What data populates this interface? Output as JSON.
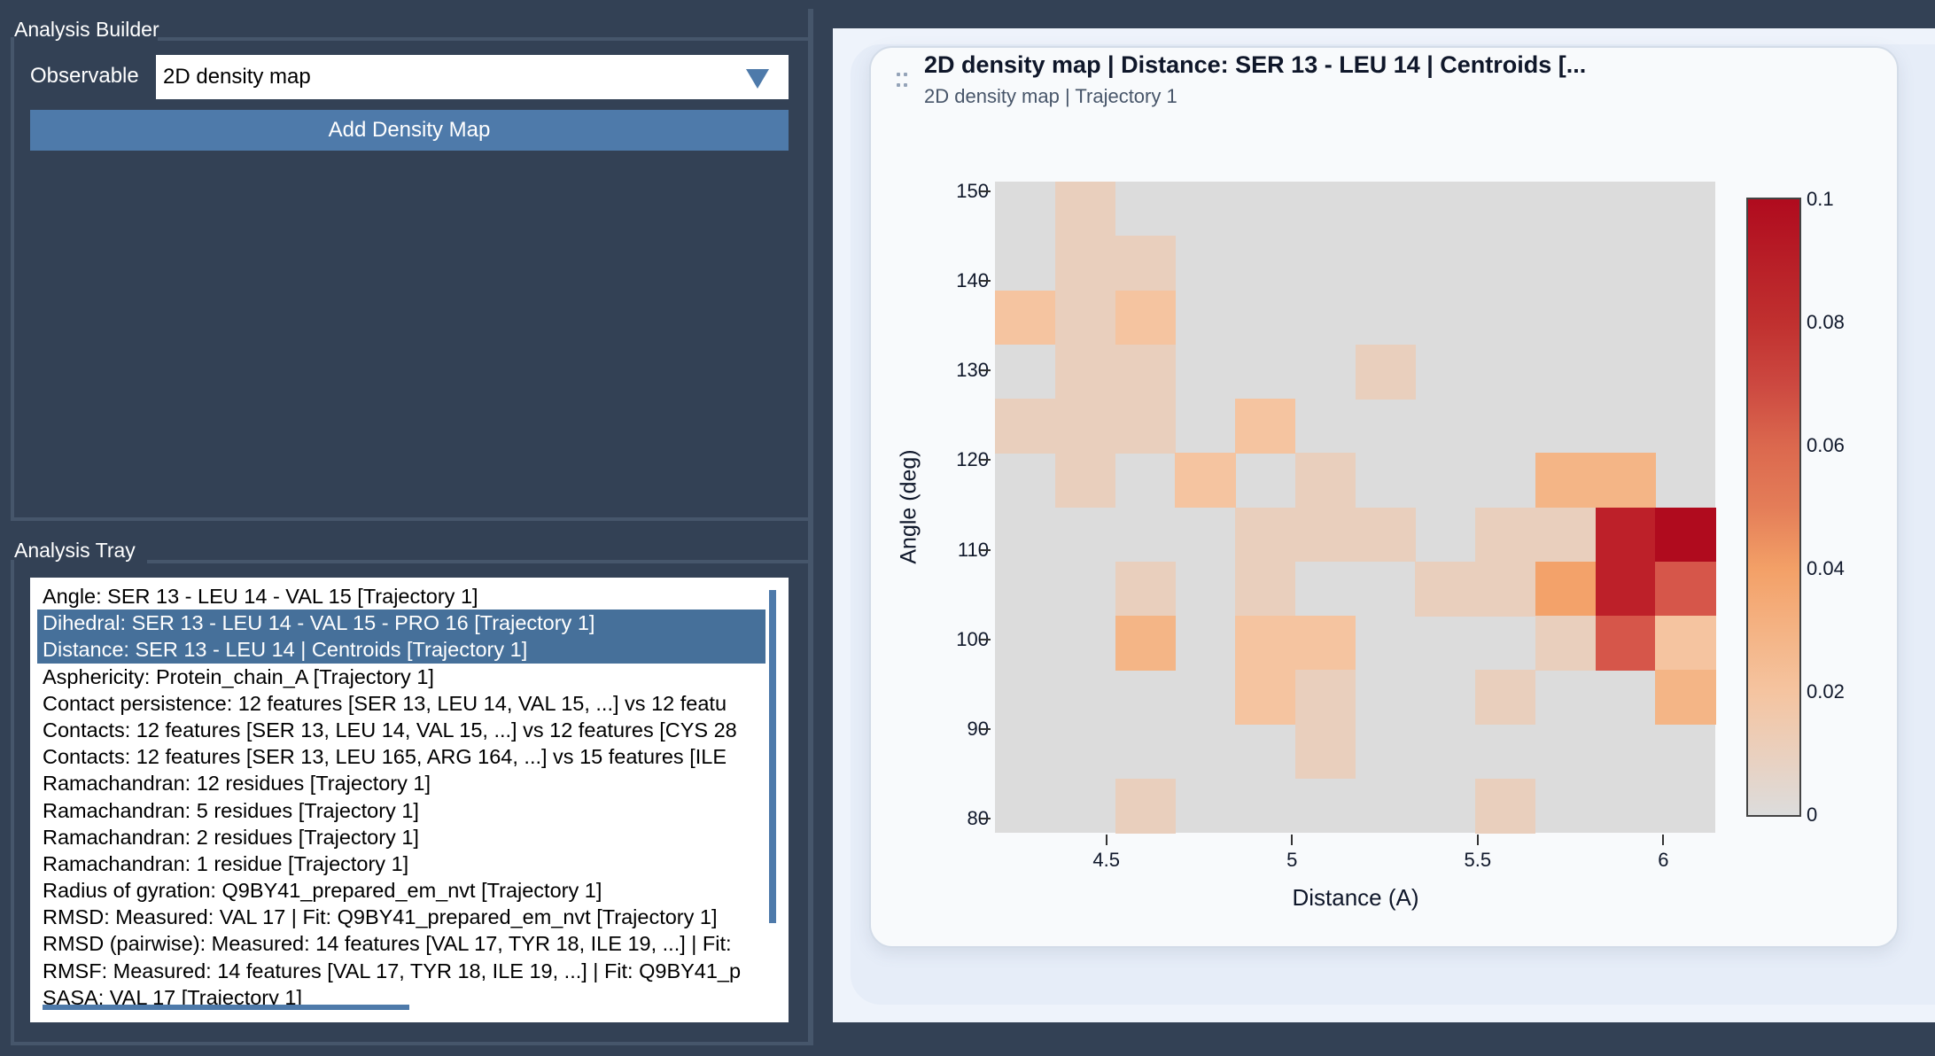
{
  "builder": {
    "title": "Analysis Builder",
    "observable_label": "Observable",
    "observable_value": "2D density map",
    "add_button": "Add Density Map"
  },
  "tray": {
    "title": "Analysis Tray",
    "items": [
      {
        "label": "Angle: SER 13 - LEU 14 - VAL 15 [Trajectory 1]",
        "selected": false
      },
      {
        "label": "Dihedral: SER 13 - LEU 14 - VAL 15 - PRO 16 [Trajectory 1]",
        "selected": true
      },
      {
        "label": "Distance: SER 13 - LEU 14 | Centroids [Trajectory 1]",
        "selected": true
      },
      {
        "label": "Asphericity: Protein_chain_A [Trajectory 1]",
        "selected": false
      },
      {
        "label": "Contact persistence: 12 features [SER 13, LEU 14, VAL 15, ...] vs 12 featu",
        "selected": false
      },
      {
        "label": "Contacts: 12 features [SER 13, LEU 14, VAL 15, ...] vs 12 features [CYS 28",
        "selected": false
      },
      {
        "label": "Contacts: 12 features [SER 13, LEU 165, ARG 164, ...] vs 15 features [ILE",
        "selected": false
      },
      {
        "label": "Ramachandran: 12 residues [Trajectory 1]",
        "selected": false
      },
      {
        "label": "Ramachandran: 5 residues [Trajectory 1]",
        "selected": false
      },
      {
        "label": "Ramachandran: 2 residues [Trajectory 1]",
        "selected": false
      },
      {
        "label": "Ramachandran: 1 residue [Trajectory 1]",
        "selected": false
      },
      {
        "label": "Radius of gyration: Q9BY41_prepared_em_nvt [Trajectory 1]",
        "selected": false
      },
      {
        "label": "RMSD: Measured: VAL 17 | Fit: Q9BY41_prepared_em_nvt [Trajectory 1]",
        "selected": false
      },
      {
        "label": "RMSD (pairwise): Measured: 14 features [VAL 17, TYR 18, ILE 19, ...] | Fit:",
        "selected": false
      },
      {
        "label": "RMSF: Measured: 14 features [VAL 17, TYR 18, ILE 19, ...] | Fit: Q9BY41_p",
        "selected": false
      },
      {
        "label": "SASA: VAL 17 [Trajectory 1]",
        "selected": false
      }
    ]
  },
  "card": {
    "title": "2D density map | Distance: SER 13 - LEU 14 | Centroids [...",
    "subtitle": "2D density map | Trajectory 1",
    "drag_icon": "drag-handle-icon"
  },
  "chart_data": {
    "type": "heatmap",
    "title": "2D density map | Distance: SER 13 - LEU 14 | Centroids [...",
    "subtitle": "2D density map | Trajectory 1",
    "xlabel": "Distance (A)",
    "ylabel": "Angle (deg)",
    "x_ticks": [
      "4.5",
      "5",
      "5.5",
      "6"
    ],
    "x_tick_values": [
      4.5,
      5,
      5.5,
      6
    ],
    "y_ticks": [
      "150",
      "140",
      "130",
      "120",
      "110",
      "100",
      "90",
      "80"
    ],
    "y_tick_values": [
      150,
      140,
      130,
      120,
      110,
      100,
      90,
      80
    ],
    "xlim": [
      4.2,
      6.14
    ],
    "ylim": [
      78.4,
      151.1
    ],
    "n_cols": 12,
    "n_rows": 12,
    "colorbar": {
      "ticks": [
        "0.1",
        "0.08",
        "0.06",
        "0.04",
        "0.02",
        "0"
      ],
      "range": [
        0,
        0.1
      ],
      "colors": [
        "#dcdcdc",
        "#f5c4a0",
        "#f3a067",
        "#d6564a",
        "#b00b1e"
      ]
    },
    "z_rows_top_to_bottom": [
      [
        0,
        0.01,
        0,
        0,
        0,
        0,
        0,
        0,
        0,
        0,
        0,
        0
      ],
      [
        0,
        0.01,
        0.01,
        0,
        0,
        0,
        0,
        0,
        0,
        0,
        0,
        0
      ],
      [
        0.02,
        0.01,
        0.02,
        0,
        0,
        0,
        0,
        0,
        0,
        0,
        0,
        0
      ],
      [
        0,
        0.01,
        0.01,
        0,
        0,
        0,
        0.01,
        0,
        0,
        0,
        0,
        0
      ],
      [
        0.01,
        0.01,
        0.01,
        0,
        0.02,
        0,
        0,
        0,
        0,
        0,
        0,
        0
      ],
      [
        0,
        0.01,
        0,
        0.02,
        0,
        0.01,
        0,
        0,
        0,
        0.03,
        0.03,
        0
      ],
      [
        0,
        0,
        0,
        0,
        0.01,
        0.01,
        0.01,
        0,
        0.01,
        0.01,
        0.09,
        0.1
      ],
      [
        0,
        0,
        0.01,
        0,
        0.01,
        0,
        0,
        0.01,
        0.01,
        0.04,
        0.09,
        0.07
      ],
      [
        0,
        0,
        0.03,
        0,
        0.02,
        0.02,
        0,
        0,
        0,
        0.01,
        0.07,
        0.02
      ],
      [
        0,
        0,
        0,
        0,
        0.02,
        0.01,
        0,
        0,
        0.01,
        0,
        0,
        0.03
      ],
      [
        0,
        0,
        0,
        0,
        0,
        0.01,
        0,
        0,
        0,
        0,
        0,
        0
      ],
      [
        0,
        0,
        0.01,
        0,
        0,
        0,
        0,
        0,
        0.01,
        0,
        0,
        0
      ]
    ]
  }
}
